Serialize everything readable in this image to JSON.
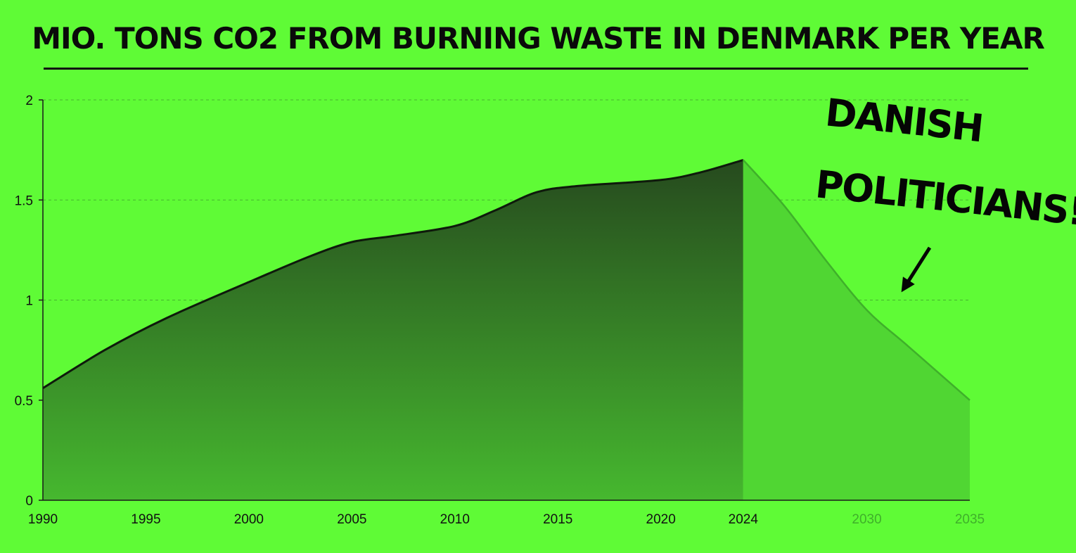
{
  "title": "MIO. TONS CO2 FROM BURNING WASTE IN DENMARK PER YEAR",
  "annotation": {
    "line1": "DANISH",
    "line2": "POLITICIANS!"
  },
  "colors": {
    "background": "#5ffb36",
    "historical_fill_top": "#264a1e",
    "historical_fill_bottom": "#46b82f",
    "projection_fill": "#50d633",
    "line": "#0e1a0b",
    "future_tick": "#3fb02a"
  },
  "chart_data": {
    "type": "area",
    "title": "MIO. TONS CO2 FROM BURNING WASTE IN DENMARK PER YEAR",
    "xlabel": "",
    "ylabel": "",
    "xlim": [
      1990,
      2035
    ],
    "ylim": [
      0,
      2
    ],
    "grid": true,
    "x_ticks": [
      {
        "value": 1990,
        "label": "1990",
        "future": false
      },
      {
        "value": 1995,
        "label": "1995",
        "future": false
      },
      {
        "value": 2000,
        "label": "2000",
        "future": false
      },
      {
        "value": 2005,
        "label": "2005",
        "future": false
      },
      {
        "value": 2010,
        "label": "2010",
        "future": false
      },
      {
        "value": 2015,
        "label": "2015",
        "future": false
      },
      {
        "value": 2020,
        "label": "2020",
        "future": false
      },
      {
        "value": 2024,
        "label": "2024",
        "future": false
      },
      {
        "value": 2030,
        "label": "2030",
        "future": true
      },
      {
        "value": 2035,
        "label": "2035",
        "future": true
      }
    ],
    "y_ticks": [
      {
        "value": 0,
        "label": "0"
      },
      {
        "value": 0.5,
        "label": "0.5"
      },
      {
        "value": 1,
        "label": "1"
      },
      {
        "value": 1.5,
        "label": "1.5"
      },
      {
        "value": 2,
        "label": "2"
      }
    ],
    "series": [
      {
        "kind": "historical",
        "x": [
          1990,
          1993,
          1996,
          2000,
          2003,
          2005,
          2007,
          2010,
          2012,
          2014,
          2016,
          2020,
          2022,
          2024
        ],
        "values": [
          0.56,
          0.75,
          0.91,
          1.09,
          1.22,
          1.29,
          1.32,
          1.37,
          1.45,
          1.54,
          1.57,
          1.6,
          1.64,
          1.7
        ]
      },
      {
        "kind": "projection",
        "x": [
          2024,
          2026,
          2028,
          2030,
          2032,
          2035
        ],
        "values": [
          1.7,
          1.47,
          1.2,
          0.95,
          0.77,
          0.5
        ]
      }
    ]
  }
}
